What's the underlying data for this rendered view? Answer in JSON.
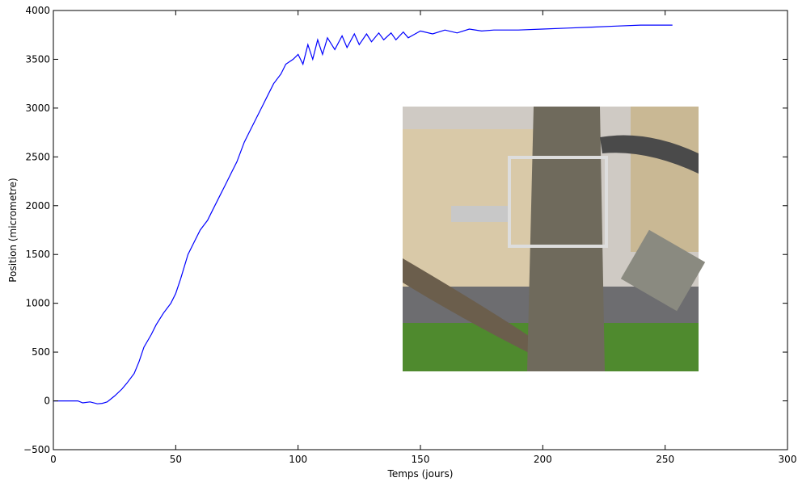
{
  "chart_data": {
    "type": "line",
    "x_label": "Temps (jours)",
    "y_label": "Position (micrometre)",
    "xlim": [
      0,
      300
    ],
    "ylim": [
      -500,
      4000
    ],
    "xticks": [
      0,
      50,
      100,
      150,
      200,
      250,
      300
    ],
    "yticks": [
      {
        "value": -500,
        "label": "−500"
      },
      0,
      500,
      1000,
      1500,
      2000,
      2500,
      3000,
      3500,
      4000
    ],
    "grid": false,
    "series": [
      {
        "name": "Position",
        "color": "#0000ff",
        "x": [
          0,
          5,
          10,
          12,
          15,
          18,
          20,
          22,
          25,
          28,
          30,
          33,
          35,
          37,
          40,
          42,
          45,
          48,
          50,
          52,
          55,
          58,
          60,
          63,
          65,
          68,
          70,
          73,
          75,
          78,
          80,
          83,
          85,
          88,
          90,
          93,
          95,
          98,
          100,
          102,
          104,
          106,
          108,
          110,
          112,
          115,
          118,
          120,
          123,
          125,
          128,
          130,
          133,
          135,
          138,
          140,
          143,
          145,
          150,
          155,
          160,
          165,
          170,
          175,
          180,
          190,
          200,
          210,
          220,
          230,
          240,
          250,
          253
        ],
        "values": [
          0,
          0,
          0,
          -20,
          -10,
          -30,
          -25,
          -10,
          50,
          120,
          180,
          280,
          400,
          550,
          680,
          780,
          900,
          1000,
          1100,
          1250,
          1500,
          1650,
          1750,
          1850,
          1950,
          2100,
          2200,
          2350,
          2450,
          2650,
          2750,
          2900,
          3000,
          3150,
          3250,
          3350,
          3450,
          3500,
          3550,
          3450,
          3650,
          3500,
          3700,
          3550,
          3720,
          3600,
          3740,
          3620,
          3760,
          3650,
          3760,
          3680,
          3770,
          3700,
          3770,
          3700,
          3780,
          3720,
          3790,
          3760,
          3800,
          3770,
          3810,
          3790,
          3800,
          3800,
          3810,
          3820,
          3830,
          3840,
          3850,
          3850,
          3850
        ]
      }
    ]
  }
}
